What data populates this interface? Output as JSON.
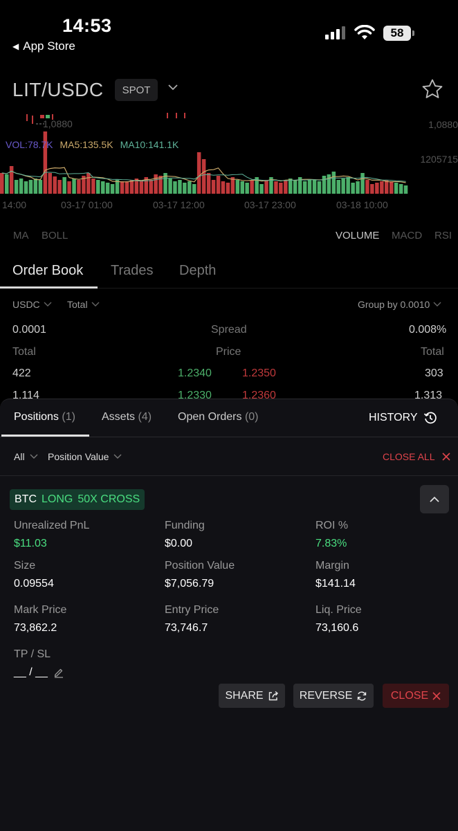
{
  "status_bar": {
    "time": "14:53",
    "back_label": "App Store",
    "battery": "58"
  },
  "header": {
    "pair": "LIT/USDC",
    "market_type": "SPOT"
  },
  "chart": {
    "cross_price": "1,0880",
    "right_price": "1,0880",
    "right_volume": "1205715",
    "legend": {
      "vol": "VOL:78.7K",
      "ma5": "MA5:135.5K",
      "ma10": "MA10:141.1K"
    },
    "time_labels": [
      "14:00",
      "03-17 01:00",
      "03-17 12:00",
      "03-17 23:00",
      "03-18 10:00"
    ],
    "colors": {
      "up": "#4caf6a",
      "down": "#c0393b",
      "ma5": "#c9a86a",
      "ma10": "#5fb39a"
    }
  },
  "chart_data": {
    "type": "bar",
    "series": [
      {
        "name": "VOL",
        "values": [
          30,
          28,
          40,
          20,
          22,
          18,
          20,
          22,
          20,
          90,
          30,
          25,
          20,
          24,
          18,
          22,
          20,
          26,
          30,
          22,
          20,
          18,
          16,
          14,
          20,
          18,
          18,
          20,
          22,
          18,
          24,
          20,
          28,
          26,
          30,
          22,
          18,
          20,
          16,
          18,
          14,
          60,
          50,
          30,
          20,
          26,
          18,
          16,
          24,
          20,
          18,
          16,
          20,
          24,
          14,
          20,
          24,
          18,
          16,
          20,
          22,
          20,
          24,
          18,
          20,
          20,
          18,
          26,
          28,
          32,
          20,
          22,
          24,
          16,
          18,
          30,
          20,
          14,
          16,
          18,
          20,
          18,
          16,
          14,
          12
        ]
      }
    ]
  },
  "indicators": {
    "left": [
      "MA",
      "BOLL"
    ],
    "right": [
      "VOLUME",
      "MACD",
      "RSI"
    ],
    "active": "VOLUME"
  },
  "order_book": {
    "tabs": [
      "Order Book",
      "Trades",
      "Depth"
    ],
    "quote_select": "USDC",
    "size_select": "Total",
    "group_by": "Group by 0.0010",
    "spread_left": "0.0001",
    "spread_label": "Spread",
    "spread_right": "0.008%",
    "col_total": "Total",
    "col_price": "Price",
    "rows": [
      {
        "bid_total": "422",
        "bid_price": "1.2340",
        "ask_price": "1.2350",
        "ask_total": "303"
      },
      {
        "bid_total": "1,114",
        "bid_price": "1.2330",
        "ask_price": "1.2360",
        "ask_total": "1,313"
      }
    ]
  },
  "positions_panel": {
    "tabs": [
      {
        "label": "Positions",
        "count": "(1)"
      },
      {
        "label": "Assets",
        "count": "(4)"
      },
      {
        "label": "Open Orders",
        "count": "(0)"
      }
    ],
    "history_label": "HISTORY",
    "filter_all": "All",
    "filter_sort": "Position Value",
    "close_all_label": "CLOSE ALL",
    "position": {
      "symbol": "BTC",
      "side": "LONG",
      "leverage": "50X CROSS",
      "fields": {
        "unrealized_pnl": {
          "label": "Unrealized PnL",
          "value": "$11.03"
        },
        "funding": {
          "label": "Funding",
          "value": "$0.00"
        },
        "roi": {
          "label": "ROI %",
          "value": "7.83%"
        },
        "size": {
          "label": "Size",
          "value": "0.09554"
        },
        "position_value": {
          "label": "Position Value",
          "value": "$7,056.79"
        },
        "margin": {
          "label": "Margin",
          "value": "$141.14"
        },
        "mark_price": {
          "label": "Mark Price",
          "value": "73,862.2"
        },
        "entry_price": {
          "label": "Entry Price",
          "value": "73,746.7"
        },
        "liq_price": {
          "label": "Liq. Price",
          "value": "73,160.6"
        },
        "tp_sl": {
          "label": "TP / SL",
          "value": "__ / __"
        }
      },
      "buttons": {
        "share": "SHARE",
        "reverse": "REVERSE",
        "close": "CLOSE"
      }
    }
  }
}
